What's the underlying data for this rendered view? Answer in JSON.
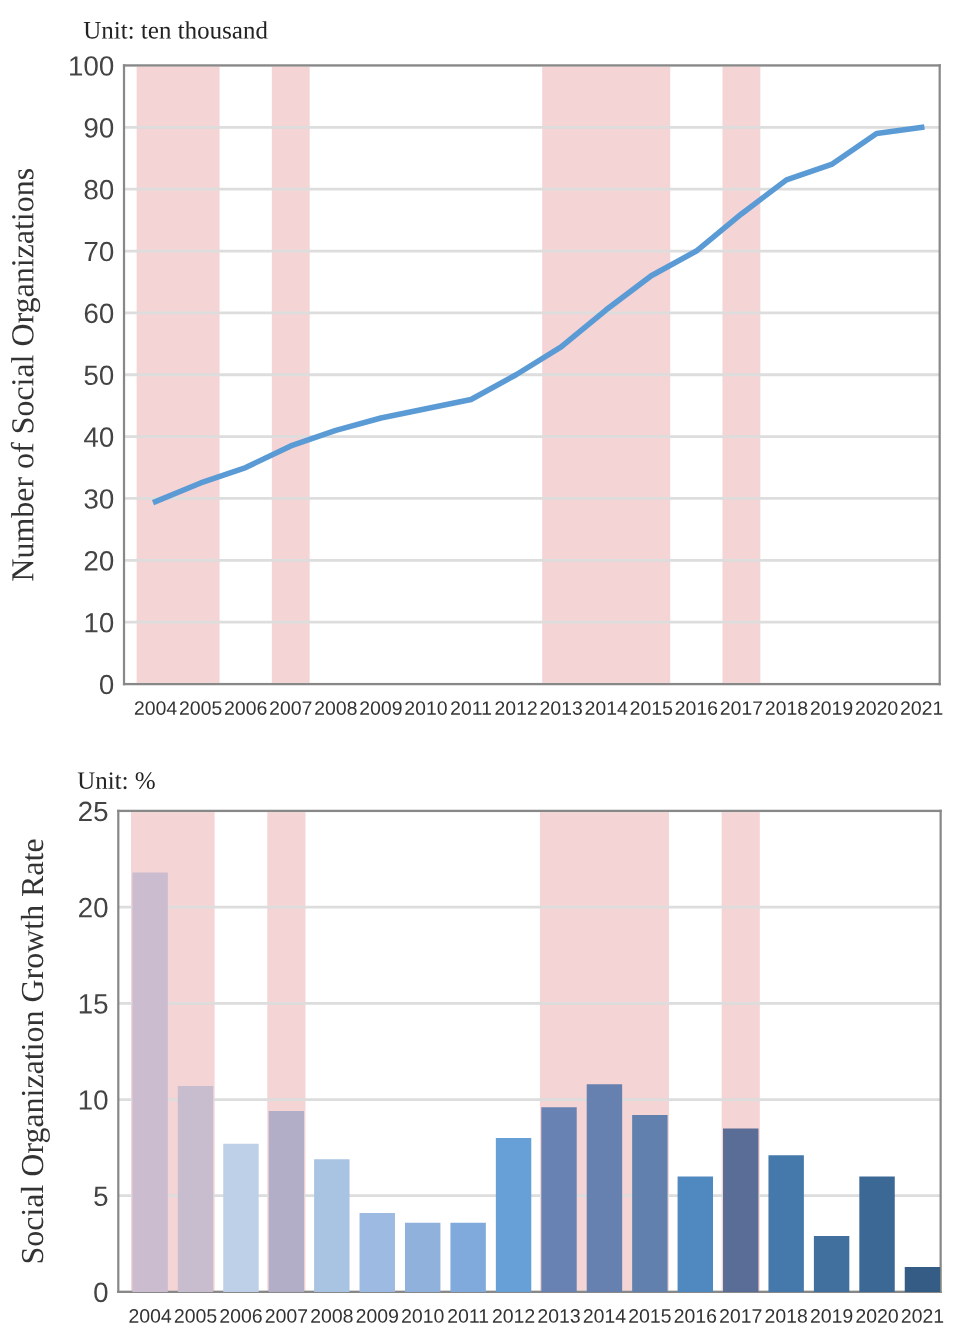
{
  "chart_data": [
    {
      "type": "line",
      "annotations": [
        "Unit: ten thousand"
      ],
      "ylabel": "Number of Social Organizations",
      "categories": [
        "2004",
        "2005",
        "2006",
        "2007",
        "2008",
        "2009",
        "2010",
        "2011",
        "2012",
        "2013",
        "2014",
        "2015",
        "2016",
        "2017",
        "2018",
        "2019",
        "2020",
        "2021"
      ],
      "series": [
        {
          "color": "#5b9bd5",
          "values": [
            29.5,
            32.5,
            35,
            38.5,
            41,
            43,
            44.5,
            46,
            50,
            54.5,
            60.5,
            66,
            70,
            76,
            81.5,
            84,
            89,
            90
          ]
        }
      ],
      "ylim": [
        0,
        100
      ],
      "yticks": [
        0,
        10,
        20,
        30,
        40,
        50,
        60,
        70,
        80,
        90,
        100
      ],
      "grid": "y",
      "marker": "none",
      "line_style": "solid",
      "bands": [
        {
          "axis": "x",
          "from": "2004",
          "to": "2005",
          "color": "#f4d4d4"
        },
        {
          "axis": "x",
          "from": "2007",
          "to": "2007",
          "color": "#f4d4d4"
        },
        {
          "axis": "x",
          "from": "2013",
          "to": "2015",
          "color": "#f4d4d4"
        },
        {
          "axis": "x",
          "from": "2017",
          "to": "2017",
          "color": "#f4d4d4"
        }
      ]
    },
    {
      "type": "bar",
      "annotations": [
        "Unit: %"
      ],
      "ylabel": "Social Organization Growth Rate",
      "categories": [
        "2004",
        "2005",
        "2006",
        "2007",
        "2008",
        "2009",
        "2010",
        "2011",
        "2012",
        "2013",
        "2014",
        "2015",
        "2016",
        "2017",
        "2018",
        "2019",
        "2020",
        "2021"
      ],
      "values": [
        21.8,
        10.7,
        7.7,
        9.4,
        6.9,
        4.1,
        3.6,
        3.6,
        8.0,
        9.6,
        10.8,
        9.2,
        6.0,
        8.5,
        7.1,
        2.9,
        6.0,
        1.3
      ],
      "colors": [
        "#cbbccf",
        "#c8bccf",
        "#bed0e8",
        "#b3aec8",
        "#a9c3e3",
        "#9dbbe2",
        "#8fb1dc",
        "#80aadb",
        "#66a0d6",
        "#6883b3",
        "#6680b0",
        "#6280ad",
        "#5088c0",
        "#5a6d96",
        "#4679ab",
        "#41709f",
        "#3b6894",
        "#345c85"
      ],
      "ylim": [
        0,
        25
      ],
      "yticks": [
        0,
        5,
        10,
        15,
        20,
        25
      ],
      "grid": "y",
      "bands": [
        {
          "axis": "x",
          "from": "2004",
          "to": "2005",
          "color": "#f4d4d4"
        },
        {
          "axis": "x",
          "from": "2007",
          "to": "2007",
          "color": "#f4d4d4"
        },
        {
          "axis": "x",
          "from": "2013",
          "to": "2015",
          "color": "#f4d4d4"
        },
        {
          "axis": "x",
          "from": "2017",
          "to": "2017",
          "color": "#f4d4d4"
        }
      ]
    }
  ]
}
